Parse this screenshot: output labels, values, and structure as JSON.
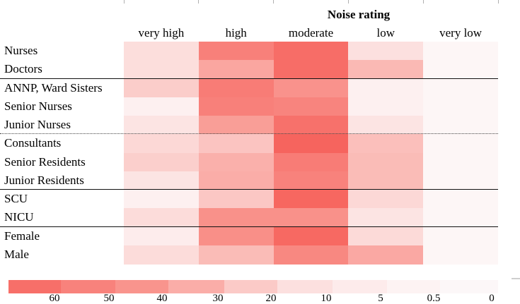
{
  "chart_data": {
    "type": "heatmap",
    "title": "Noise rating",
    "columns": [
      "very high",
      "high",
      "moderate",
      "low",
      "very low"
    ],
    "rows": [
      "Nurses",
      "Doctors",
      "ANNP, Ward Sisters",
      "Senior Nurses",
      "Junior Nurses",
      "Consultants",
      "Senior Residents",
      "Junior Residents",
      "SCU",
      "NICU",
      "Female",
      "Male"
    ],
    "values": [
      [
        12,
        52,
        62,
        11,
        0.3
      ],
      [
        12,
        34,
        62,
        27,
        0.3
      ],
      [
        20,
        54,
        42,
        2.5,
        0.3
      ],
      [
        3,
        52,
        50,
        3,
        0.3
      ],
      [
        9,
        37,
        60,
        9,
        0.3
      ],
      [
        15,
        23,
        66,
        25,
        0.3
      ],
      [
        19,
        30,
        54,
        26,
        0.3
      ],
      [
        9,
        31,
        51,
        26,
        0.3
      ],
      [
        3,
        22,
        65,
        15,
        0.3
      ],
      [
        13,
        43,
        43,
        9,
        0.3
      ],
      [
        5,
        44,
        64,
        14,
        0.3
      ],
      [
        13,
        26,
        48,
        33,
        0.3
      ]
    ],
    "row_group_separators": [
      {
        "after_row": "Doctors",
        "style": "solid"
      },
      {
        "after_row": "Junior Nurses",
        "style": "dotted"
      },
      {
        "after_row": "Junior Residents",
        "style": "solid"
      },
      {
        "after_row": "NICU",
        "style": "solid"
      }
    ],
    "colorbar": {
      "orientation": "horizontal",
      "position": "bottom",
      "descending": true,
      "tick_labels": [
        "60",
        "50",
        "40",
        "30",
        "20",
        "10",
        "5",
        "0.5",
        "0"
      ],
      "segment_representative_values": [
        61,
        51,
        41,
        31,
        21,
        11,
        5.5,
        1,
        0.2
      ]
    },
    "colormap_anchors": [
      {
        "value": 0,
        "color": "#fcf9fa"
      },
      {
        "value": 0.5,
        "color": "#fdf4f4"
      },
      {
        "value": 5,
        "color": "#fdecec"
      },
      {
        "value": 10,
        "color": "#fce2e1"
      },
      {
        "value": 20,
        "color": "#fbcdca"
      },
      {
        "value": 30,
        "color": "#fab0ab"
      },
      {
        "value": 40,
        "color": "#f9968f"
      },
      {
        "value": 50,
        "color": "#f8847e"
      },
      {
        "value": 60,
        "color": "#f7716b"
      },
      {
        "value": 70,
        "color": "#f65c55"
      }
    ]
  }
}
